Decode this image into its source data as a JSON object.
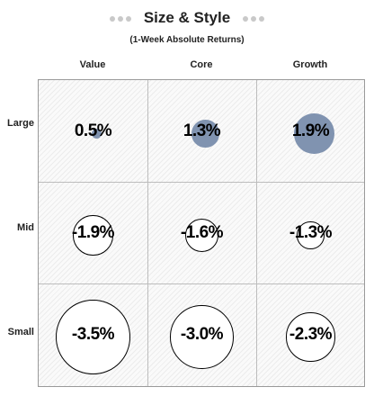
{
  "chart_data": {
    "type": "bubble-grid",
    "title": "Size & Style",
    "subtitle": "(1-Week Absolute Returns)",
    "columns": [
      "Value",
      "Core",
      "Growth"
    ],
    "rows": [
      "Large",
      "Mid",
      "Small"
    ],
    "values": [
      [
        0.5,
        1.3,
        1.9
      ],
      [
        -1.9,
        -1.6,
        -1.3
      ],
      [
        -3.5,
        -3.0,
        -2.3
      ]
    ],
    "labels": [
      [
        "0.5%",
        "1.3%",
        "1.9%"
      ],
      [
        "-1.9%",
        "-1.6%",
        "-1.3%"
      ],
      [
        "-3.5%",
        "-3.0%",
        "-2.3%"
      ]
    ],
    "colors": {
      "positive": "#8093b0",
      "negative_fill": "#ffffff",
      "negative_outline": "#000000"
    }
  }
}
